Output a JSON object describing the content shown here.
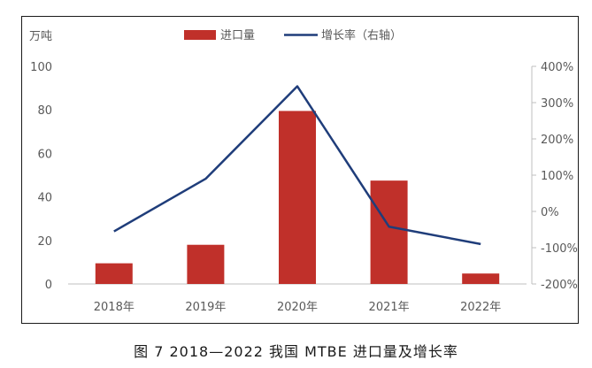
{
  "chart_data": {
    "type": "bar",
    "categories": [
      "2018年",
      "2019年",
      "2020年",
      "2021年",
      "2022年"
    ],
    "series": [
      {
        "name": "进口量",
        "type": "bar",
        "axis": "left",
        "color": "#c0302a",
        "values": [
          9.5,
          18.0,
          79.5,
          47.5,
          4.8
        ]
      },
      {
        "name": "增长率（右轴）",
        "type": "line",
        "axis": "right",
        "color": "#1f3d7a",
        "values": [
          -55,
          90,
          345,
          -42,
          -90
        ]
      }
    ],
    "ylabel": "万吨",
    "ylim": [
      0,
      100
    ],
    "yticks": [
      "0",
      "20",
      "40",
      "60",
      "80",
      "100"
    ],
    "y2lim": [
      -200,
      400
    ],
    "y2ticks": [
      "-200%",
      "-100%",
      "0%",
      "100%",
      "200%",
      "300%",
      "400%"
    ],
    "legend": "top-center",
    "grid": false
  },
  "caption": "图 7  2018—2022 我国 MTBE 进口量及增长率"
}
